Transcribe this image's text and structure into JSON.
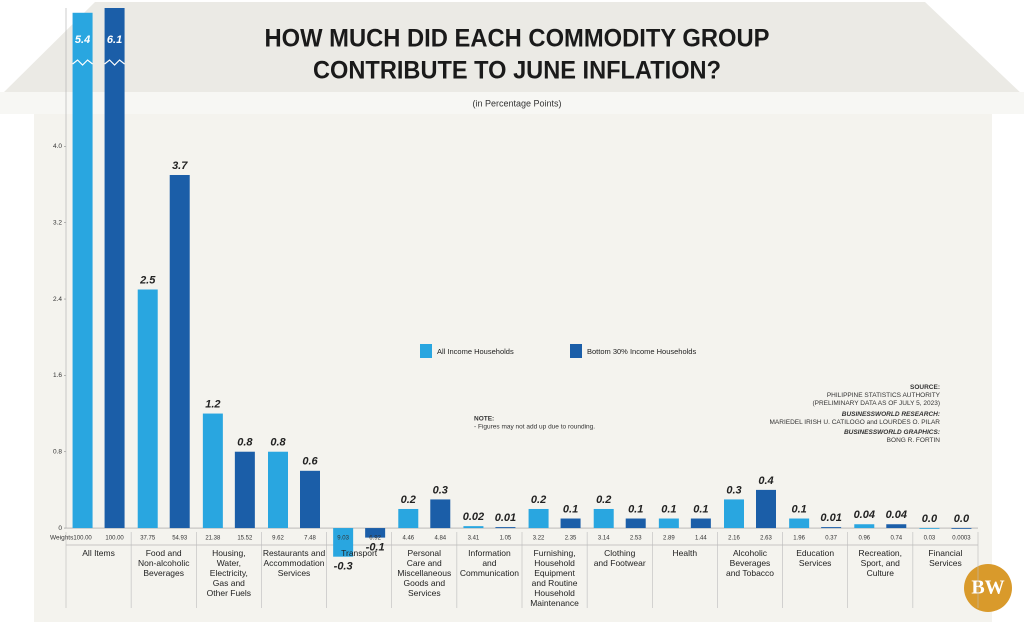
{
  "chart_data": {
    "type": "bar",
    "title": [
      "HOW MUCH DID EACH COMMODITY GROUP",
      "CONTRIBUTE TO JUNE INFLATION?"
    ],
    "subtitle": "(in Percentage Points)",
    "categories": [
      "All Items",
      "Food and\nNon-alcoholic\nBeverages",
      "Housing,\nWater,\nElectricity,\nGas and\nOther Fuels",
      "Restaurants and\nAccommodation\nServices",
      "Transport",
      "Personal\nCare and\nMiscellaneous\nGoods and\nServices",
      "Information\nand\nCommunication",
      "Furnishing,\nHousehold\nEquipment\nand Routine\nHousehold\nMaintenance",
      "Clothing\nand Footwear",
      "Health",
      "Alcoholic\nBeverages\nand Tobacco",
      "Education\nServices",
      "Recreation,\nSport, and\nCulture",
      "Financial\nServices"
    ],
    "weights_label": "Weights",
    "series": [
      {
        "name": "All Income Households",
        "color": "#29a6e0",
        "values": [
          5.4,
          2.5,
          1.2,
          0.8,
          -0.3,
          0.2,
          0.02,
          0.2,
          0.2,
          0.1,
          0.3,
          0.1,
          0.04,
          0
        ],
        "value_labels": [
          "5.4",
          "2.5",
          "1.2",
          "0.8",
          "-0.3",
          "0.2",
          "0.02",
          "0.2",
          "0.2",
          "0.1",
          "0.3",
          "0.1",
          "0.04",
          "0.0"
        ],
        "weights": [
          "100.00",
          "37.75",
          "21.38",
          "9.62",
          "9.03",
          "4.46",
          "3.41",
          "3.22",
          "3.14",
          "2.89",
          "2.16",
          "1.96",
          "0.96",
          "0.03"
        ]
      },
      {
        "name": "Bottom 30% Income Households",
        "color": "#1b5ea8",
        "values": [
          6.1,
          3.7,
          0.8,
          0.6,
          -0.1,
          0.3,
          0.01,
          0.1,
          0.1,
          0.1,
          0.4,
          0.01,
          0.04,
          0
        ],
        "value_labels": [
          "6.1",
          "3.7",
          "0.8",
          "0.6",
          "-0.1",
          "0.3",
          "0.01",
          "0.1",
          "0.1",
          "0.1",
          "0.4",
          "0.01",
          "0.04",
          "0.0"
        ],
        "weights": [
          "100.00",
          "54.93",
          "15.52",
          "7.48",
          "6.92",
          "4.84",
          "1.05",
          "2.35",
          "2.53",
          "1.44",
          "2.63",
          "0.37",
          "0.74",
          "0.0003"
        ]
      }
    ],
    "ylim": [
      -0.45,
      5.45
    ],
    "yticks": [
      0,
      0.8,
      1.6,
      2.4,
      3.2,
      {
        "value": 4,
        "label": "4.0"
      }
    ],
    "note": [
      "NOTE:",
      "- Figures may not add up due to rounding."
    ],
    "source": [
      "SOURCE:",
      "PHILIPPINE STATISTICS AUTHORITY",
      "(PRELIMINARY DATA AS OF JULY 5, 2023)",
      "BUSINESSWORLD RESEARCH:",
      "MARIEDEL IRISH U. CATILOGO and LOURDES O. PILAR",
      "BUSINESSWORLD GRAPHICS:",
      "BONG R. FORTIN"
    ],
    "logo": "BW"
  }
}
